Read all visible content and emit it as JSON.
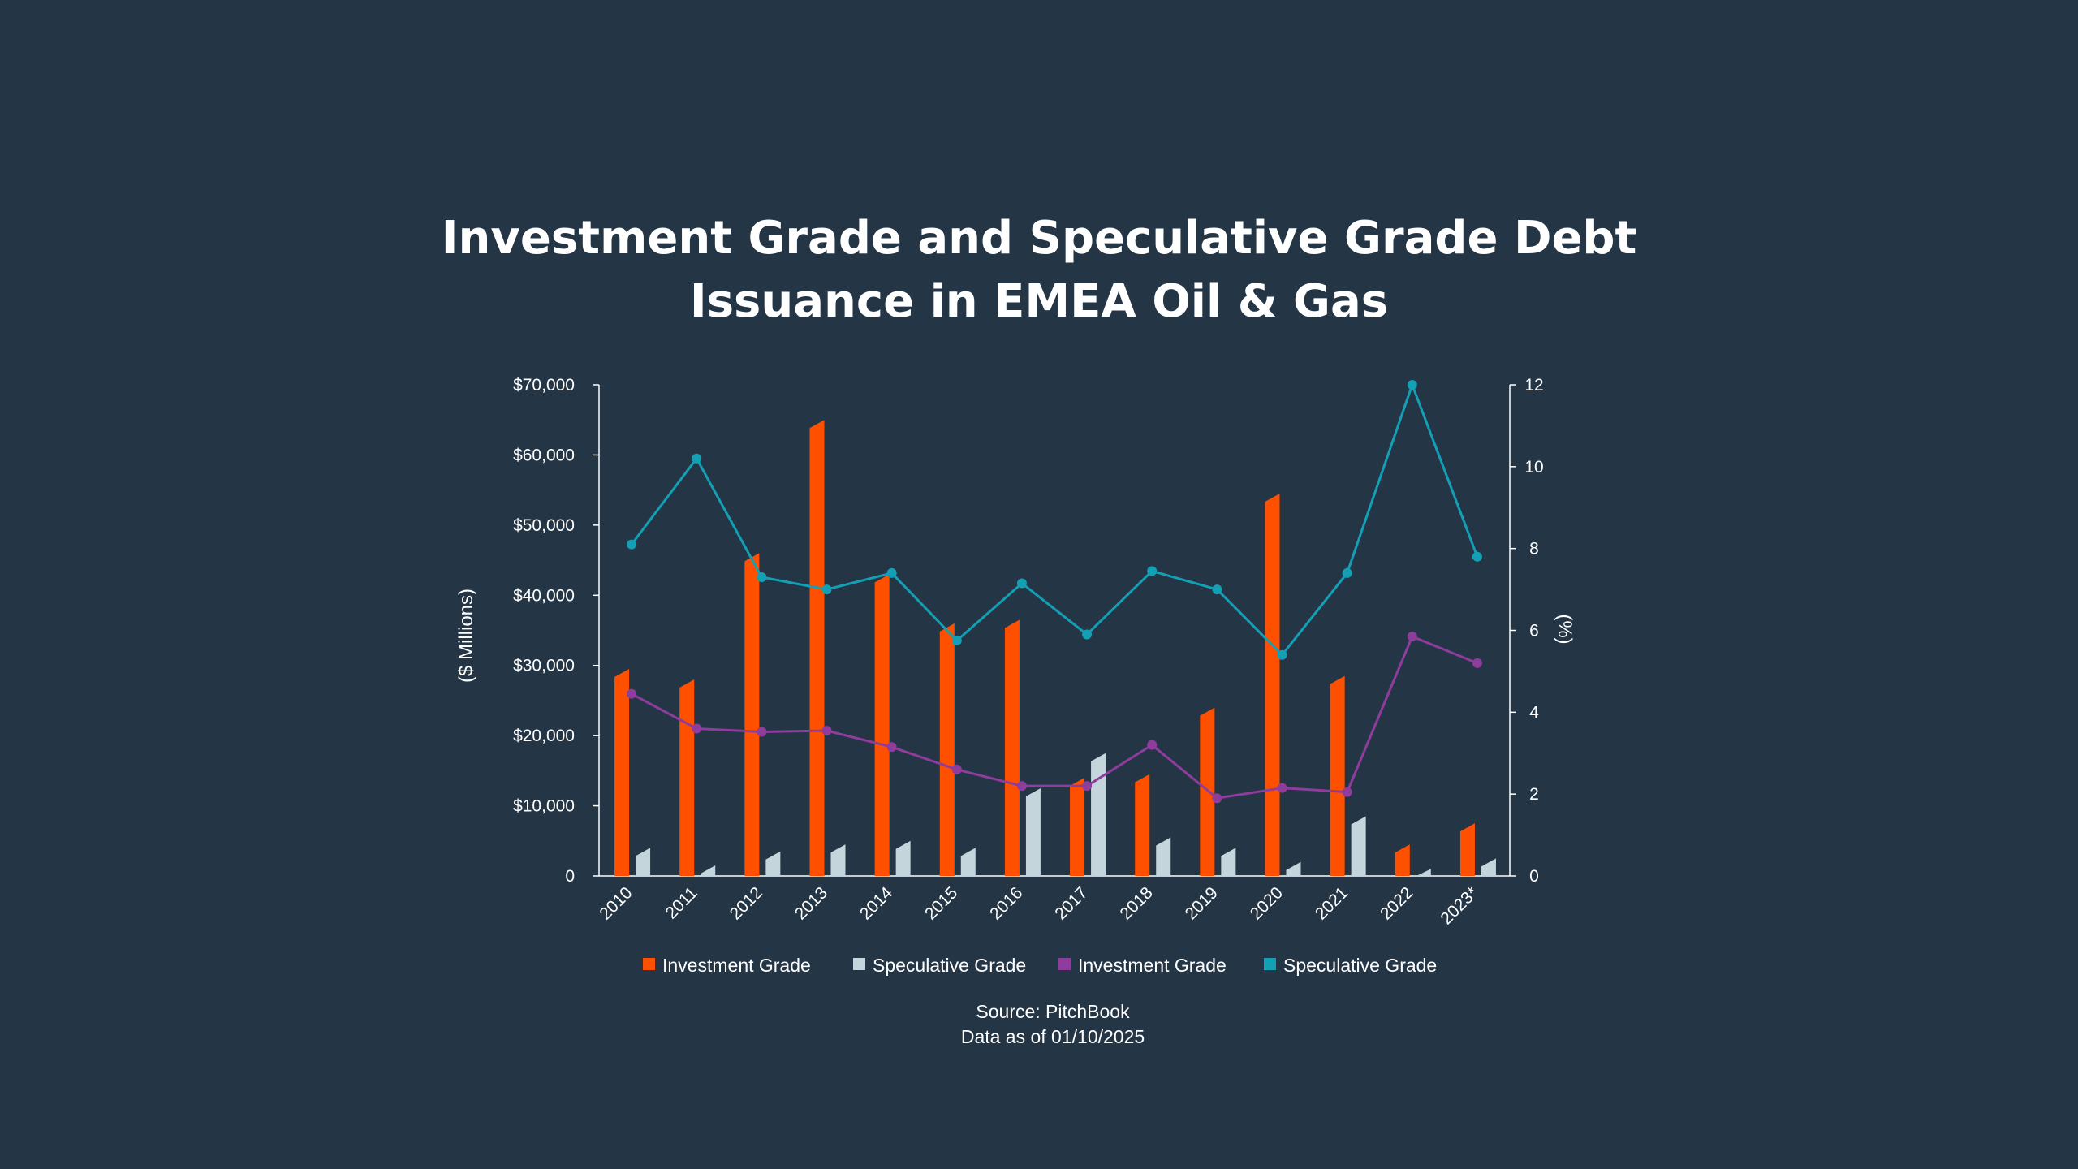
{
  "chart_data": {
    "type": "bar",
    "title_lines": [
      "Investment Grade and Speculative Grade Debt",
      "Issuance in EMEA Oil & Gas"
    ],
    "categories": [
      "2010",
      "2011",
      "2012",
      "2013",
      "2014",
      "2015",
      "2016",
      "2017",
      "2018",
      "2019",
      "2020",
      "2021",
      "2022",
      "2023*"
    ],
    "y_left": {
      "label": "($ Millions)",
      "range": [
        0,
        70000
      ],
      "ticks": [
        "0",
        "$10,000",
        "$20,000",
        "$30,000",
        "$40,000",
        "$50,000",
        "$60,000",
        "$70,000"
      ]
    },
    "y_right": {
      "label": "(%)",
      "range": [
        0,
        12
      ],
      "ticks": [
        "0",
        "2",
        "4",
        "6",
        "8",
        "10",
        "12"
      ]
    },
    "bar_series": [
      {
        "name": "Investment Grade",
        "color": "#ff5000",
        "values": [
          29500,
          28000,
          46000,
          65000,
          43000,
          36000,
          36500,
          14000,
          14500,
          24000,
          54500,
          28500,
          4500,
          7500
        ]
      },
      {
        "name": "Speculative Grade",
        "color": "#c5d5dc",
        "values": [
          4000,
          1500,
          3500,
          4500,
          5000,
          4000,
          12500,
          17500,
          5500,
          4000,
          2000,
          8500,
          1000,
          2500
        ]
      }
    ],
    "line_series": [
      {
        "name": "Investment Grade",
        "color": "#8e3d9c",
        "values": [
          4.45,
          3.6,
          3.52,
          3.55,
          3.15,
          2.6,
          2.2,
          2.2,
          3.2,
          1.9,
          2.15,
          2.05,
          5.85,
          5.2
        ]
      },
      {
        "name": "Speculative Grade",
        "color": "#13a0b4",
        "values": [
          8.1,
          10.2,
          7.3,
          7.0,
          7.4,
          5.75,
          7.15,
          5.9,
          7.45,
          7.0,
          5.4,
          7.4,
          12.0,
          7.8
        ]
      }
    ],
    "legend_position": "bottom",
    "grid": false
  },
  "footer": {
    "source": "Source: PitchBook",
    "date": "Data as of 01/10/2025"
  }
}
